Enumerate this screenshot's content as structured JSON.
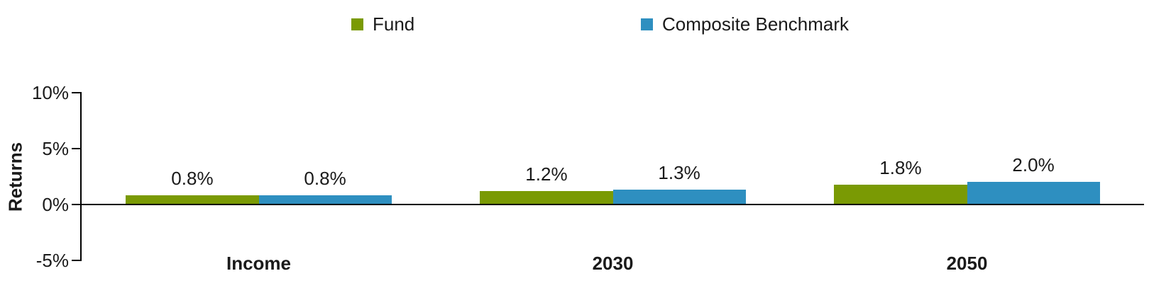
{
  "chart_data": {
    "type": "bar",
    "title": "",
    "xlabel": "",
    "ylabel": "Returns",
    "categories": [
      "Income",
      "2030",
      "2050"
    ],
    "series": [
      {
        "name": "Fund",
        "color": "#7a9a04",
        "values": [
          0.8,
          1.2,
          1.8
        ],
        "labels": [
          "0.8%",
          "1.2%",
          "1.8%"
        ]
      },
      {
        "name": "Composite Benchmark",
        "color": "#2e8fc0",
        "values": [
          0.8,
          1.3,
          2.0
        ],
        "labels": [
          "0.8%",
          "1.3%",
          "2.0%"
        ]
      }
    ],
    "y_ticks": [
      {
        "label": "10%",
        "value": 10
      },
      {
        "label": "5%",
        "value": 5
      },
      {
        "label": "0%",
        "value": 0
      },
      {
        "label": "-5%",
        "value": -5
      }
    ],
    "ylim": [
      -5,
      10
    ],
    "grid": false,
    "legend_position": "top",
    "axis_color": "#000000",
    "text_color": "#1a1a1a"
  },
  "legend": {
    "items": [
      {
        "label": "Fund",
        "color": "#7a9a04"
      },
      {
        "label": "Composite Benchmark",
        "color": "#2e8fc0"
      }
    ]
  }
}
